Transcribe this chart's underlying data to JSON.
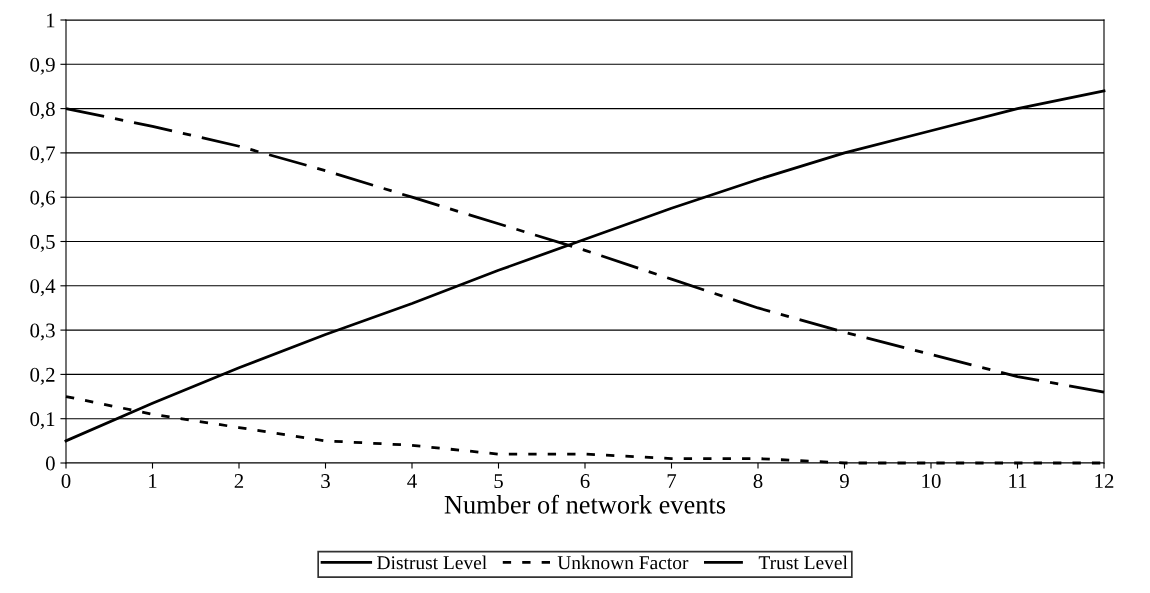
{
  "chart_data": {
    "type": "line",
    "xlabel": "Number of network events",
    "x": [
      0,
      1,
      2,
      3,
      4,
      5,
      6,
      7,
      8,
      9,
      10,
      11,
      12
    ],
    "series": [
      {
        "name": "Distrust Level",
        "color": "#000000",
        "line_style": "solid",
        "values": [
          0.05,
          0.135,
          0.215,
          0.29,
          0.36,
          0.435,
          0.505,
          0.575,
          0.64,
          0.7,
          0.75,
          0.8,
          0.84
        ]
      },
      {
        "name": "Unknown Factor",
        "color": "#000000",
        "line_style": "dotted",
        "values": [
          0.15,
          0.11,
          0.08,
          0.05,
          0.04,
          0.02,
          0.02,
          0.01,
          0.01,
          0,
          0,
          0,
          0
        ]
      },
      {
        "name": "Trust Level",
        "color": "#000000",
        "line_style": "dashdot",
        "values": [
          0.8,
          0.76,
          0.715,
          0.66,
          0.6,
          0.54,
          0.48,
          0.415,
          0.35,
          0.295,
          0.245,
          0.195,
          0.16
        ]
      }
    ],
    "xlim": [
      0,
      12
    ],
    "xticks": [
      0,
      1,
      2,
      3,
      4,
      5,
      6,
      7,
      8,
      9,
      10,
      11,
      12
    ],
    "ylim": [
      0,
      1
    ],
    "yticks": [
      0,
      {
        "value": 0.1,
        "label": "0,1"
      },
      {
        "value": 0.2,
        "label": "0,2"
      },
      {
        "value": 0.3,
        "label": "0,3"
      },
      {
        "value": 0.4,
        "label": "0,4"
      },
      {
        "value": 0.5,
        "label": "0,5"
      },
      {
        "value": 0.6,
        "label": "0,6"
      },
      {
        "value": 0.7,
        "label": "0,7"
      },
      {
        "value": 0.8,
        "label": "0,8"
      },
      {
        "value": 0.9,
        "label": "0,9"
      },
      1
    ],
    "grid": "y",
    "legend": "bottom",
    "marker": "none"
  }
}
